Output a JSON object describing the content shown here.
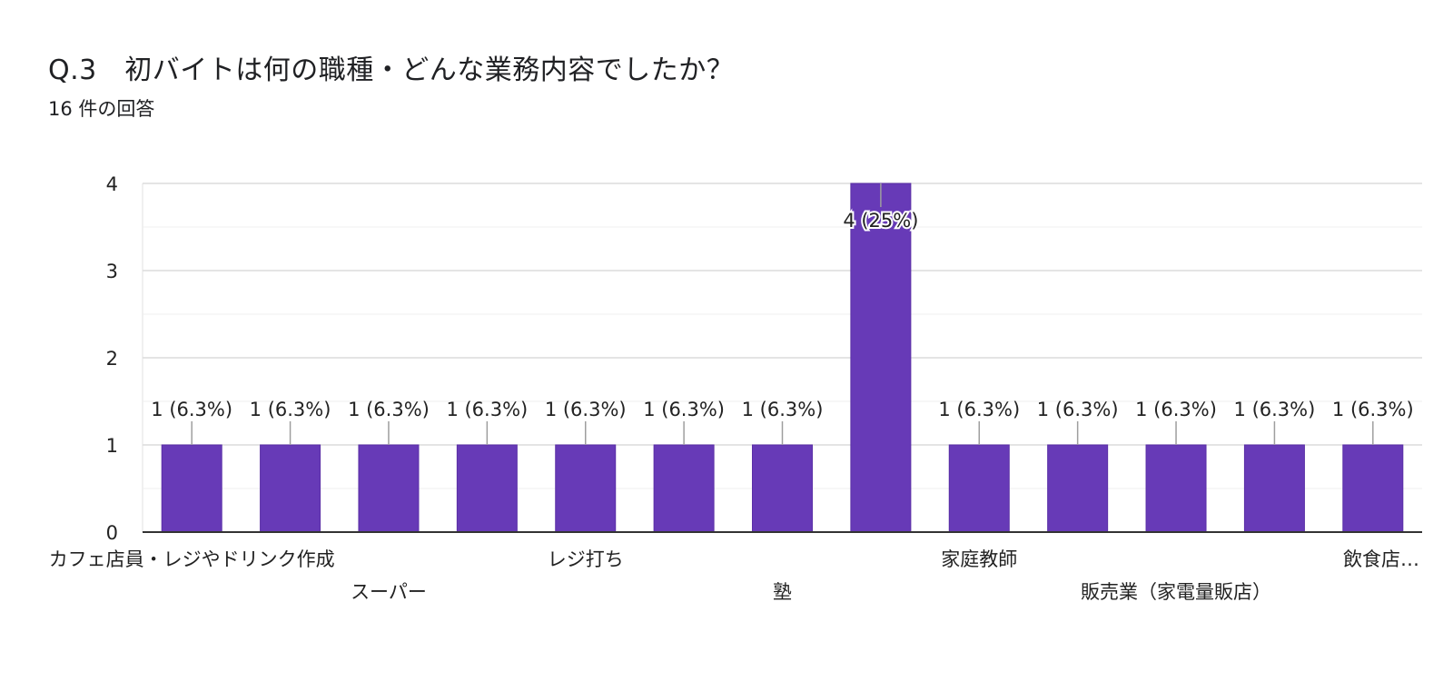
{
  "header": {
    "title": "Q.3　初バイトは何の職種・どんな業務内容でしたか？",
    "subtitle": "16 件の回答"
  },
  "chart_data": {
    "type": "bar",
    "categories": [
      "カフェ店員・レジやドリンク作成",
      "",
      "スーパー",
      "",
      "レジ打ち",
      "",
      "塾",
      "",
      "家庭教師",
      "",
      "販売業（家電量販店）",
      "",
      "飲食店…"
    ],
    "values": [
      1,
      1,
      1,
      1,
      1,
      1,
      1,
      4,
      1,
      1,
      1,
      1,
      1
    ],
    "data_labels": [
      "1 (6.3%)",
      "1 (6.3%)",
      "1 (6.3%)",
      "1 (6.3%)",
      "1 (6.3%)",
      "1 (6.3%)",
      "1 (6.3%)",
      "4 (25%)",
      "1 (6.3%)",
      "1 (6.3%)",
      "1 (6.3%)",
      "1 (6.3%)",
      "1 (6.3%)"
    ],
    "y_ticks": [
      "0",
      "1",
      "2",
      "3",
      "4"
    ],
    "ylim": [
      0,
      4
    ],
    "grid": true,
    "bar_color": "#673ab7"
  }
}
